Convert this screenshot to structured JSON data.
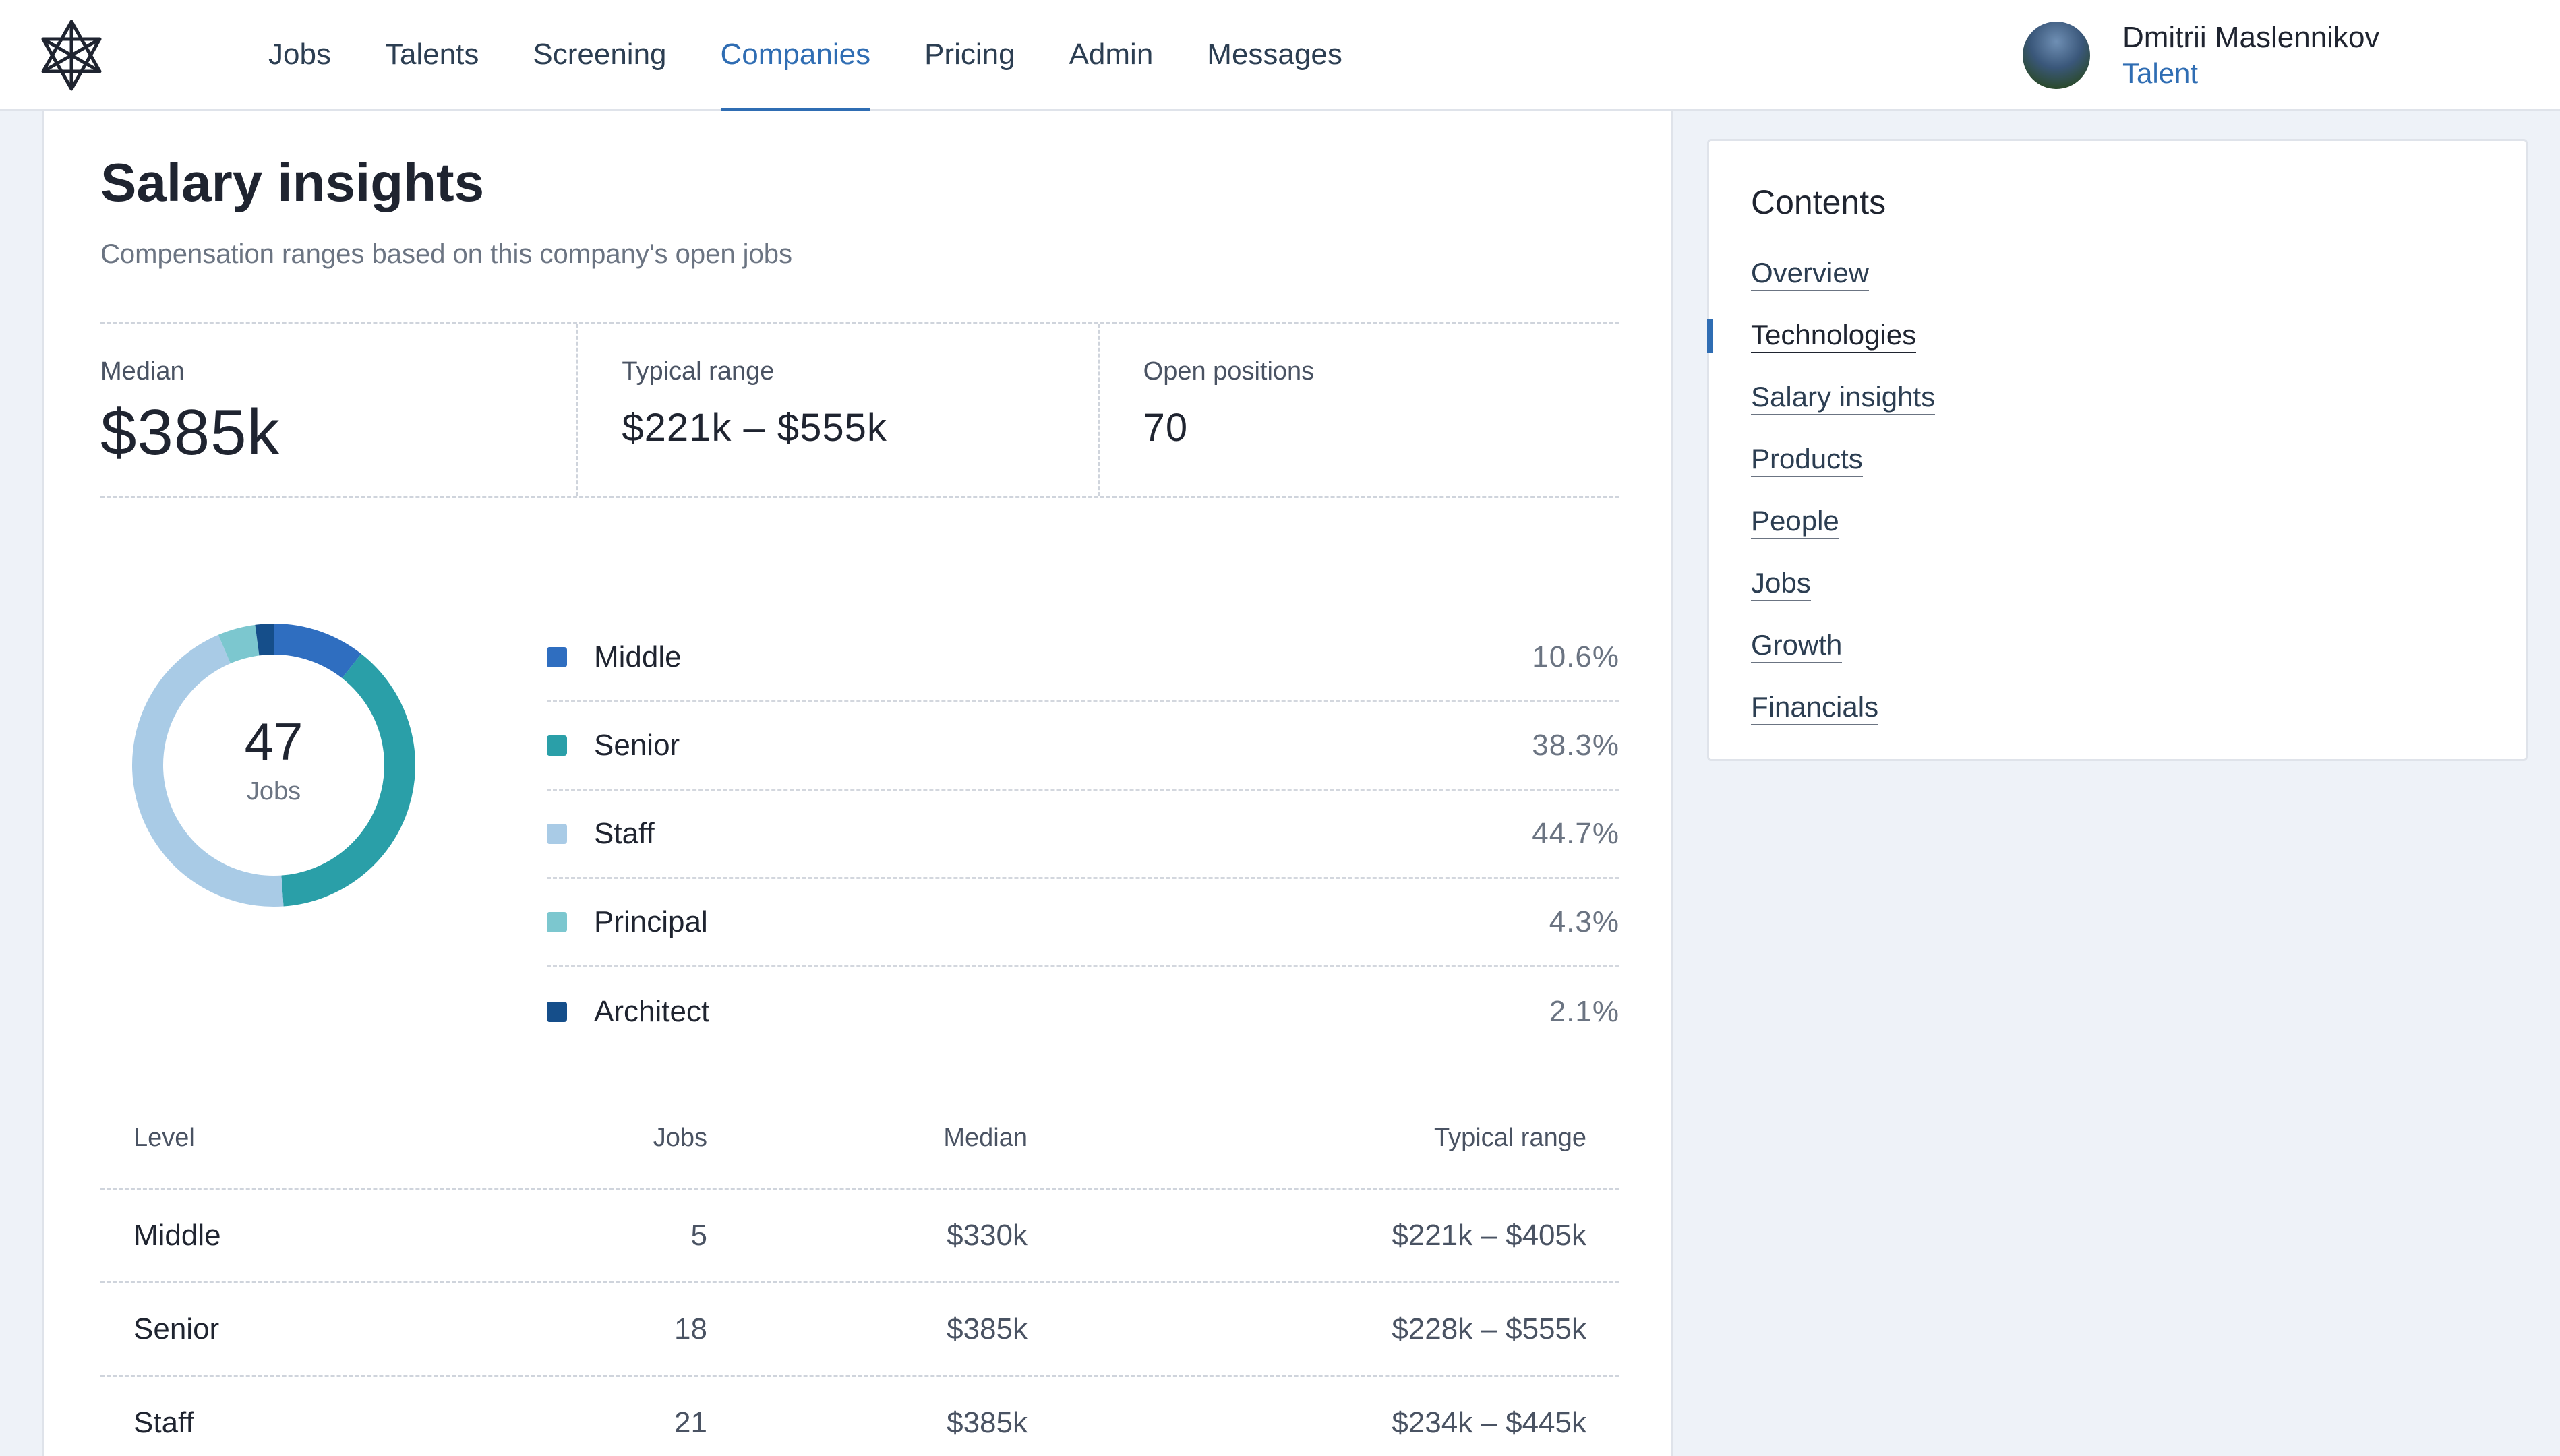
{
  "nav": {
    "items": [
      {
        "label": "Jobs",
        "active": false
      },
      {
        "label": "Talents",
        "active": false
      },
      {
        "label": "Screening",
        "active": false
      },
      {
        "label": "Companies",
        "active": true
      },
      {
        "label": "Pricing",
        "active": false
      },
      {
        "label": "Admin",
        "active": false
      },
      {
        "label": "Messages",
        "active": false
      }
    ]
  },
  "user": {
    "name": "Dmitrii Maslennikov",
    "role": "Talent"
  },
  "section": {
    "title": "Salary insights",
    "subtitle": "Compensation ranges based on this company's open jobs"
  },
  "stats": {
    "median": {
      "label": "Median",
      "value": "$385k"
    },
    "typical_range": {
      "label": "Typical range",
      "value": "$221k – $555k"
    },
    "open_positions": {
      "label": "Open positions",
      "value": "70"
    }
  },
  "donut": {
    "total": "47",
    "total_label": "Jobs"
  },
  "chart_data": {
    "type": "pie",
    "categories": [
      "Middle",
      "Senior",
      "Staff",
      "Principal",
      "Architect"
    ],
    "values": [
      10.6,
      38.3,
      44.7,
      4.3,
      2.1
    ],
    "value_labels": [
      "10.6%",
      "38.3%",
      "44.7%",
      "4.3%",
      "2.1%"
    ],
    "colors": [
      "#2f6ec0",
      "#2a9fa8",
      "#a9cbe6",
      "#7cc7cf",
      "#154e8a"
    ]
  },
  "table": {
    "headers": {
      "level": "Level",
      "jobs": "Jobs",
      "median": "Median",
      "range": "Typical range"
    },
    "rows": [
      {
        "level": "Middle",
        "jobs": "5",
        "median": "$330k",
        "range": "$221k – $405k"
      },
      {
        "level": "Senior",
        "jobs": "18",
        "median": "$385k",
        "range": "$228k – $555k"
      },
      {
        "level": "Staff",
        "jobs": "21",
        "median": "$385k",
        "range": "$234k – $445k"
      }
    ]
  },
  "toc": {
    "title": "Contents",
    "items": [
      {
        "label": "Overview",
        "active": false
      },
      {
        "label": "Technologies",
        "active": true
      },
      {
        "label": "Salary insights",
        "active": false
      },
      {
        "label": "Products",
        "active": false
      },
      {
        "label": "People",
        "active": false
      },
      {
        "label": "Jobs",
        "active": false
      },
      {
        "label": "Growth",
        "active": false
      },
      {
        "label": "Financials",
        "active": false
      }
    ]
  },
  "icons": {
    "logo": "star-of-david-logo-icon",
    "avatar": "user-avatar"
  }
}
